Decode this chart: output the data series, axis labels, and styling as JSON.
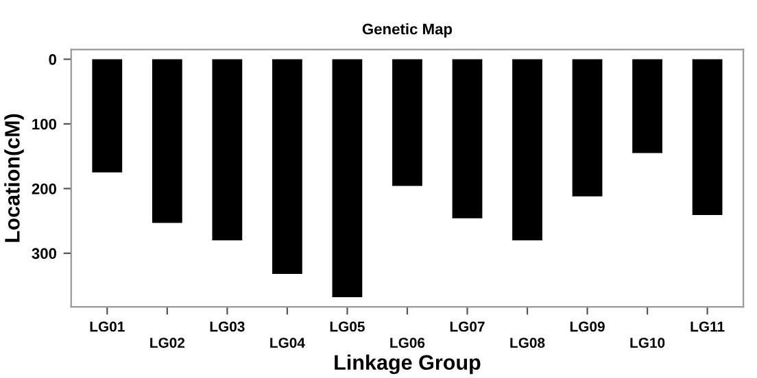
{
  "chart_data": {
    "type": "bar",
    "title": "Genetic Map",
    "xlabel": "Linkage Group",
    "ylabel": "Location(cM)",
    "categories": [
      "LG01",
      "LG02",
      "LG03",
      "LG04",
      "LG05",
      "LG06",
      "LG07",
      "LG08",
      "LG09",
      "LG10",
      "LG11"
    ],
    "values": [
      175,
      253,
      280,
      332,
      368,
      196,
      246,
      280,
      212,
      145,
      241
    ],
    "color": "#000000",
    "ylim": [
      383,
      -15
    ],
    "yticks": [
      0,
      100,
      200,
      300
    ],
    "grid": false,
    "legend": false
  }
}
